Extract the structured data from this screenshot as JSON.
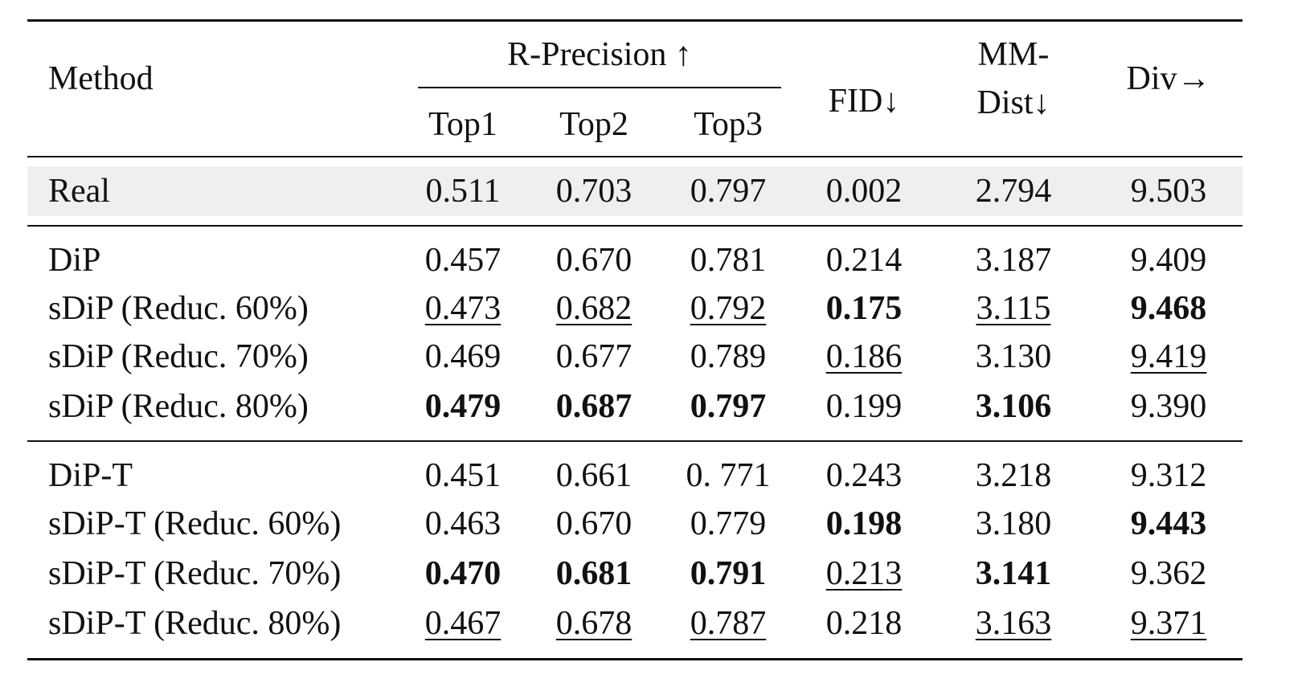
{
  "table": {
    "header": {
      "method": "Method",
      "group": "R-Precision ↑",
      "sub": [
        "Top1",
        "Top2",
        "Top3"
      ],
      "fid": "FID↓",
      "mm_line1": "MM-",
      "mm_line2": "Dist↓",
      "div": "Div→"
    },
    "rows": [
      {
        "name": "Real",
        "cells": [
          {
            "v": "0.511",
            "s": ""
          },
          {
            "v": "0.703",
            "s": ""
          },
          {
            "v": "0.797",
            "s": ""
          },
          {
            "v": "0.002",
            "s": ""
          },
          {
            "v": "2.794",
            "s": ""
          },
          {
            "v": "9.503",
            "s": ""
          }
        ]
      },
      {
        "name": "DiP",
        "cells": [
          {
            "v": "0.457",
            "s": ""
          },
          {
            "v": "0.670",
            "s": ""
          },
          {
            "v": "0.781",
            "s": ""
          },
          {
            "v": "0.214",
            "s": ""
          },
          {
            "v": "3.187",
            "s": ""
          },
          {
            "v": "9.409",
            "s": ""
          }
        ]
      },
      {
        "name": "sDiP (Reduc. 60%)",
        "cells": [
          {
            "v": "0.473",
            "s": "u"
          },
          {
            "v": "0.682",
            "s": "u"
          },
          {
            "v": "0.792",
            "s": "u"
          },
          {
            "v": "0.175",
            "s": "b"
          },
          {
            "v": "3.115",
            "s": "u"
          },
          {
            "v": "9.468",
            "s": "b"
          }
        ]
      },
      {
        "name": "sDiP (Reduc. 70%)",
        "cells": [
          {
            "v": "0.469",
            "s": ""
          },
          {
            "v": "0.677",
            "s": ""
          },
          {
            "v": "0.789",
            "s": ""
          },
          {
            "v": "0.186",
            "s": "u"
          },
          {
            "v": "3.130",
            "s": ""
          },
          {
            "v": "9.419",
            "s": "u"
          }
        ]
      },
      {
        "name": "sDiP (Reduc. 80%)",
        "cells": [
          {
            "v": "0.479",
            "s": "b"
          },
          {
            "v": "0.687",
            "s": "b"
          },
          {
            "v": "0.797",
            "s": "b"
          },
          {
            "v": "0.199",
            "s": ""
          },
          {
            "v": "3.106",
            "s": "b"
          },
          {
            "v": "9.390",
            "s": ""
          }
        ]
      },
      {
        "name": "DiP-T",
        "cells": [
          {
            "v": "0.451",
            "s": ""
          },
          {
            "v": "0.661",
            "s": ""
          },
          {
            "v": "0. 771",
            "s": ""
          },
          {
            "v": "0.243",
            "s": ""
          },
          {
            "v": "3.218",
            "s": ""
          },
          {
            "v": "9.312",
            "s": ""
          }
        ]
      },
      {
        "name": "sDiP-T (Reduc. 60%)",
        "cells": [
          {
            "v": "0.463",
            "s": ""
          },
          {
            "v": "0.670",
            "s": ""
          },
          {
            "v": "0.779",
            "s": ""
          },
          {
            "v": "0.198",
            "s": "b"
          },
          {
            "v": "3.180",
            "s": ""
          },
          {
            "v": "9.443",
            "s": "b"
          }
        ]
      },
      {
        "name": "sDiP-T (Reduc. 70%)",
        "cells": [
          {
            "v": "0.470",
            "s": "b"
          },
          {
            "v": "0.681",
            "s": "b"
          },
          {
            "v": "0.791",
            "s": "b"
          },
          {
            "v": "0.213",
            "s": "u"
          },
          {
            "v": "3.141",
            "s": "b"
          },
          {
            "v": "9.362",
            "s": ""
          }
        ]
      },
      {
        "name": "sDiP-T (Reduc. 80%)",
        "cells": [
          {
            "v": "0.467",
            "s": "u"
          },
          {
            "v": "0.678",
            "s": "u"
          },
          {
            "v": "0.787",
            "s": "u"
          },
          {
            "v": "0.218",
            "s": ""
          },
          {
            "v": "3.163",
            "s": "u"
          },
          {
            "v": "9.371",
            "s": "u"
          }
        ]
      }
    ]
  }
}
